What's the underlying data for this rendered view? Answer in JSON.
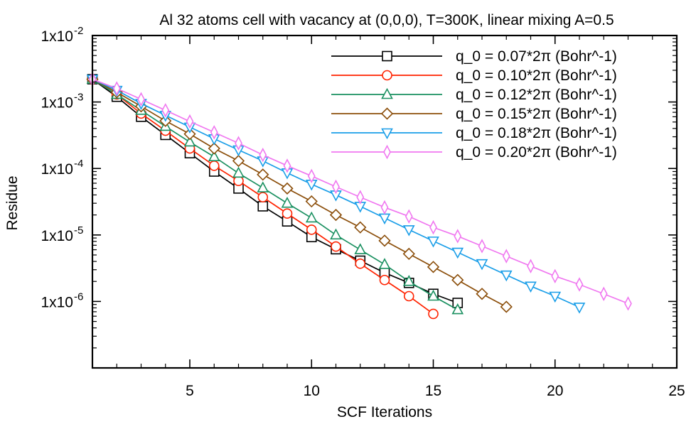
{
  "chart_data": {
    "type": "line",
    "title": "Al 32 atoms cell with vacancy at (0,0,0), T=300K, linear mixing A=0.5",
    "xlabel": "SCF Iterations",
    "ylabel": "Residue",
    "xlim": [
      1,
      25
    ],
    "ylim": [
      1e-07,
      0.01
    ],
    "yscale": "log",
    "xticks": [
      5,
      10,
      15,
      20,
      25
    ],
    "xtick_labels": [
      "5",
      "10",
      "15",
      "20",
      "25"
    ],
    "yticks": [
      {
        "value": 0.01,
        "base": "1x10",
        "exp": "-2"
      },
      {
        "value": 0.001,
        "base": "1x10",
        "exp": "-3"
      },
      {
        "value": 0.0001,
        "base": "1x10",
        "exp": "-4"
      },
      {
        "value": 1e-05,
        "base": "1x10",
        "exp": "-5"
      },
      {
        "value": 1e-06,
        "base": "1x10",
        "exp": "-6"
      }
    ],
    "grid": false,
    "legend_position": "top-right",
    "series": [
      {
        "name": "q_0 = 0.07*2π (Bohr^-1)",
        "color": "#000000",
        "marker": "square",
        "x": [
          1,
          2,
          3,
          4,
          5,
          6,
          7,
          8,
          9,
          10,
          11,
          12,
          13,
          14,
          15,
          16
        ],
        "y": [
          0.0022,
          0.0012,
          0.0006,
          0.00032,
          0.00017,
          9e-05,
          5e-05,
          2.7e-05,
          1.6e-05,
          9.3e-06,
          6.1e-06,
          4.1e-06,
          2.7e-06,
          1.9e-06,
          1.3e-06,
          9.5e-07
        ]
      },
      {
        "name": "q_0 = 0.10*2π (Bohr^-1)",
        "color": "#ff2200",
        "marker": "circle",
        "x": [
          1,
          2,
          3,
          4,
          5,
          6,
          7,
          8,
          9,
          10,
          11,
          12,
          13,
          14,
          15
        ],
        "y": [
          0.0022,
          0.0013,
          0.00067,
          0.00037,
          0.0002,
          0.00011,
          6.5e-05,
          3.7e-05,
          2.1e-05,
          1.2e-05,
          6.7e-06,
          3.7e-06,
          2.1e-06,
          1.2e-06,
          6.5e-07
        ]
      },
      {
        "name": "q_0 = 0.12*2π (Bohr^-1)",
        "color": "#1a9060",
        "marker": "triangle-up",
        "x": [
          1,
          2,
          3,
          4,
          5,
          6,
          7,
          8,
          9,
          10,
          11,
          12,
          13,
          14,
          15,
          16
        ],
        "y": [
          0.0022,
          0.0013,
          0.00075,
          0.00043,
          0.00025,
          0.00015,
          8.5e-05,
          5.1e-05,
          3e-05,
          1.8e-05,
          1e-05,
          6e-06,
          3.6e-06,
          2e-06,
          1.2e-06,
          7.5e-07
        ]
      },
      {
        "name": "q_0 = 0.15*2π (Bohr^-1)",
        "color": "#8b4e0a",
        "marker": "diamond",
        "x": [
          1,
          2,
          3,
          4,
          5,
          6,
          7,
          8,
          9,
          10,
          11,
          12,
          13,
          14,
          15,
          16,
          17,
          18
        ],
        "y": [
          0.0022,
          0.0014,
          0.00086,
          0.00052,
          0.00033,
          0.0002,
          0.00013,
          8.1e-05,
          5e-05,
          3.2e-05,
          2e-05,
          1.3e-05,
          8.2e-06,
          5.2e-06,
          3.3e-06,
          2.1e-06,
          1.3e-06,
          8.3e-07
        ]
      },
      {
        "name": "q_0 = 0.18*2π (Bohr^-1)",
        "color": "#1a9ee8",
        "marker": "triangle-down",
        "x": [
          1,
          2,
          3,
          4,
          5,
          6,
          7,
          8,
          9,
          10,
          11,
          12,
          13,
          14,
          15,
          16,
          17,
          18,
          19,
          20,
          21
        ],
        "y": [
          0.0022,
          0.0015,
          0.00095,
          0.00063,
          0.00042,
          0.00028,
          0.00019,
          0.00013,
          8.6e-05,
          5.8e-05,
          4e-05,
          2.7e-05,
          1.8e-05,
          1.2e-05,
          8.1e-06,
          5.5e-06,
          3.7e-06,
          2.5e-06,
          1.7e-06,
          1.2e-06,
          8.2e-07
        ]
      },
      {
        "name": "q_0 = 0.20*2π (Bohr^-1)",
        "color": "#f078f0",
        "marker": "thin-diamond",
        "x": [
          1,
          2,
          3,
          4,
          5,
          6,
          7,
          8,
          9,
          10,
          11,
          12,
          13,
          14,
          15,
          16,
          17,
          18,
          19,
          20,
          21,
          22,
          23
        ],
        "y": [
          0.0022,
          0.0016,
          0.0011,
          0.00075,
          0.00051,
          0.00035,
          0.00024,
          0.00016,
          0.00011,
          7.7e-05,
          5.3e-05,
          3.7e-05,
          2.6e-05,
          1.9e-05,
          1.3e-05,
          9.6e-06,
          6.8e-06,
          4.8e-06,
          3.4e-06,
          2.4e-06,
          1.8e-06,
          1.3e-06,
          9.3e-07
        ]
      }
    ]
  }
}
